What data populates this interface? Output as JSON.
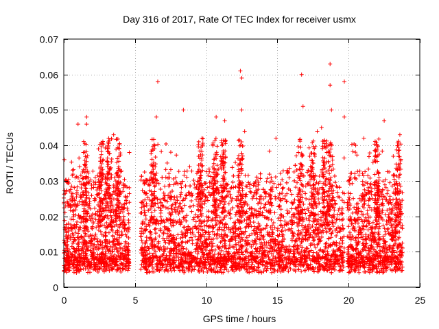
{
  "chart_data": {
    "type": "scatter",
    "title": "Day 316 of 2017, Rate Of TEC Index for receiver usmx",
    "xlabel": "GPS time / hours",
    "ylabel": "ROTI / TECUs",
    "xlim": [
      0,
      25
    ],
    "ylim": [
      0,
      0.07
    ],
    "xticks": [
      "0",
      "5",
      "10",
      "15",
      "20",
      "25"
    ],
    "yticks": [
      "0",
      "0.01",
      "0.02",
      "0.03",
      "0.04",
      "0.05",
      "0.06",
      "0.07"
    ],
    "grid": true,
    "marker": "+",
    "color": "#ff0000",
    "coverage_segments": [
      [
        0.0,
        4.6
      ],
      [
        5.4,
        19.7
      ],
      [
        19.9,
        23.8
      ]
    ],
    "typical_range": [
      0.004,
      0.03
    ],
    "outliers": [
      {
        "x": 6.6,
        "y": 0.058
      },
      {
        "x": 8.4,
        "y": 0.05
      },
      {
        "x": 12.4,
        "y": 0.061
      },
      {
        "x": 12.5,
        "y": 0.059
      },
      {
        "x": 12.5,
        "y": 0.05
      },
      {
        "x": 16.7,
        "y": 0.06
      },
      {
        "x": 16.8,
        "y": 0.051
      },
      {
        "x": 18.7,
        "y": 0.063
      },
      {
        "x": 18.7,
        "y": 0.057
      },
      {
        "x": 18.8,
        "y": 0.05
      },
      {
        "x": 18.1,
        "y": 0.045
      },
      {
        "x": 19.7,
        "y": 0.058
      },
      {
        "x": 19.7,
        "y": 0.048
      },
      {
        "x": 1.6,
        "y": 0.048
      },
      {
        "x": 1.6,
        "y": 0.046
      },
      {
        "x": 3.5,
        "y": 0.043
      },
      {
        "x": 6.5,
        "y": 0.048
      },
      {
        "x": 10.7,
        "y": 0.048
      },
      {
        "x": 11.3,
        "y": 0.047
      },
      {
        "x": 20.5,
        "y": 0.04
      },
      {
        "x": 22.5,
        "y": 0.047
      },
      {
        "x": 23.6,
        "y": 0.043
      },
      {
        "x": 14.9,
        "y": 0.042
      },
      {
        "x": 4.6,
        "y": 0.038
      },
      {
        "x": 1.0,
        "y": 0.046
      },
      {
        "x": 17.8,
        "y": 0.044
      },
      {
        "x": 12.7,
        "y": 0.044
      }
    ]
  }
}
